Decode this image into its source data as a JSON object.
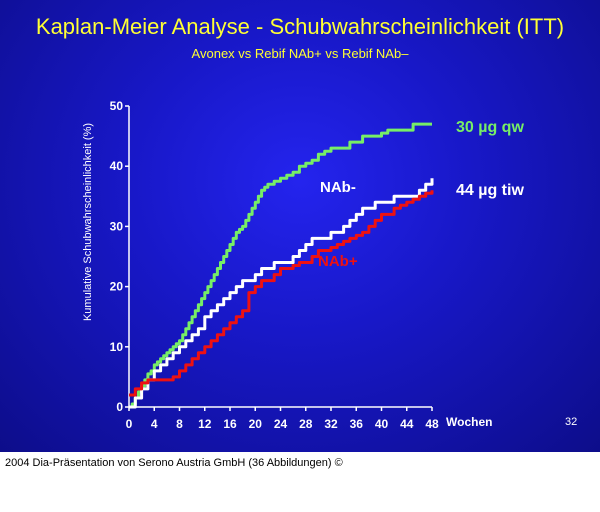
{
  "slide": {
    "title": "Kaplan-Meier Analyse - Schubwahrscheinlichkeit (ITT)",
    "subtitle": "Avonex vs Rebif NAb+ vs Rebif NAb–",
    "slide_number": "32",
    "background_color": "#1a1ad0",
    "title_color": "#ffff33"
  },
  "footer": {
    "text": "2004 Dia-Präsentation von Serono Austria GmbH (36 Abbildungen) ©"
  },
  "chart_data": {
    "type": "line",
    "title": "Kaplan-Meier Analyse - Schubwahrscheinlichkeit (ITT)",
    "subtitle": "Avonex vs Rebif NAb+ vs Rebif NAb–",
    "xlabel": "Wochen",
    "ylabel": "Kumulative Schubwahrscheinlichkeit (%)",
    "xlim": [
      0,
      48
    ],
    "ylim": [
      0,
      50
    ],
    "xticks": [
      0,
      4,
      8,
      12,
      16,
      20,
      24,
      28,
      32,
      36,
      40,
      44,
      48
    ],
    "yticks": [
      0,
      10,
      20,
      30,
      40,
      50
    ],
    "grid": false,
    "series": [
      {
        "name": "30 µg qw",
        "color": "#77ee66",
        "x": [
          0,
          0.5,
          1,
          1.5,
          2,
          2.5,
          3,
          3.5,
          4,
          4.5,
          5,
          5.5,
          6,
          6.5,
          7,
          7.5,
          8,
          8.5,
          9,
          9.5,
          10,
          10.5,
          11,
          11.5,
          12,
          12.5,
          13,
          13.5,
          14,
          14.5,
          15,
          15.5,
          16,
          16.5,
          17,
          17.5,
          18,
          18.5,
          19,
          19.5,
          20,
          20.5,
          21,
          21.5,
          22,
          23,
          24,
          25,
          26,
          27,
          28,
          29,
          30,
          31,
          32,
          33,
          34,
          35,
          36,
          37,
          38,
          39,
          40,
          41,
          42,
          43,
          44,
          45,
          46,
          47,
          48
        ],
        "values": [
          0,
          0.5,
          1.5,
          2.5,
          3.5,
          4.5,
          5.5,
          6,
          7,
          7.5,
          8,
          8.5,
          9,
          9.5,
          10,
          10.5,
          11,
          12,
          13,
          14,
          15,
          16,
          17,
          18,
          19,
          20,
          21,
          22,
          23,
          24,
          25,
          26,
          27,
          28,
          29,
          29.5,
          30,
          31,
          32,
          33,
          34,
          35,
          36,
          36.5,
          37,
          37.5,
          38,
          38.5,
          39,
          40,
          40.5,
          41,
          42,
          42.5,
          43,
          43,
          43,
          44,
          44,
          45,
          45,
          45,
          45.5,
          46,
          46,
          46,
          46,
          47,
          47,
          47,
          47
        ]
      },
      {
        "name": "NAb-",
        "color": "#ffffff",
        "x": [
          0,
          1,
          2,
          3,
          4,
          5,
          6,
          7,
          8,
          9,
          10,
          11,
          12,
          13,
          14,
          15,
          16,
          17,
          18,
          19,
          20,
          21,
          22,
          23,
          24,
          25,
          26,
          27,
          28,
          29,
          30,
          31,
          32,
          33,
          34,
          35,
          36,
          37,
          38,
          39,
          40,
          41,
          42,
          43,
          44,
          45,
          46,
          47,
          48
        ],
        "values": [
          0,
          1.5,
          3,
          4.5,
          6,
          7,
          8,
          9,
          10,
          11,
          12,
          13,
          15,
          16,
          17,
          18,
          19,
          20,
          21,
          21,
          22,
          23,
          23,
          24,
          24,
          24,
          25,
          26,
          27,
          28,
          28,
          28,
          29,
          29,
          30,
          31,
          32,
          33,
          33,
          34,
          34,
          34,
          35,
          35,
          35,
          35,
          36,
          37,
          38
        ]
      },
      {
        "name": "NAb+",
        "color": "#ee1111",
        "x": [
          0,
          1,
          2,
          3,
          4,
          5,
          6,
          7,
          8,
          9,
          10,
          11,
          12,
          13,
          14,
          15,
          16,
          17,
          18,
          19,
          20,
          21,
          22,
          23,
          24,
          25,
          26,
          27,
          28,
          29,
          30,
          31,
          32,
          33,
          34,
          35,
          36,
          37,
          38,
          39,
          40,
          41,
          42,
          43,
          44,
          45,
          46,
          47,
          48
        ],
        "values": [
          2,
          3,
          4,
          4.5,
          4.5,
          4.5,
          4.5,
          5,
          6,
          7,
          8,
          9,
          10,
          11,
          12,
          13,
          14,
          15,
          16,
          19,
          20,
          21,
          21,
          22,
          23,
          23,
          23.5,
          24,
          24,
          25,
          26,
          26,
          26.5,
          27,
          27.5,
          28,
          28.5,
          29,
          30,
          31,
          32,
          32,
          33,
          33.5,
          34,
          34.5,
          35,
          35.5,
          36
        ]
      }
    ],
    "annotations": [
      {
        "text": "30 µg qw",
        "color": "#77ee66"
      },
      {
        "text": "NAb-",
        "color": "#ffffff"
      },
      {
        "text": "44 µg tiw",
        "color": "#ffffff"
      },
      {
        "text": "NAb+",
        "color": "#ee1111"
      }
    ]
  }
}
